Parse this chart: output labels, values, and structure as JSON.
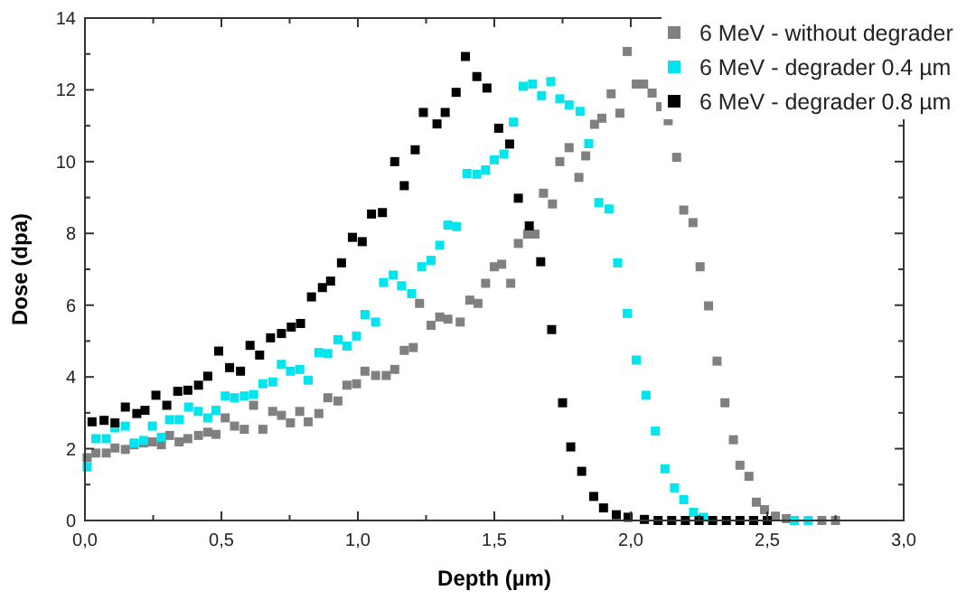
{
  "chart_data": {
    "type": "scatter",
    "xlabel": "Depth (µm)",
    "ylabel": "Dose (dpa)",
    "marker": "square",
    "legend": "top right",
    "grid": false,
    "xlim": [
      0,
      3
    ],
    "ylim": [
      0,
      14
    ],
    "xticks": [
      {
        "value": 0,
        "label": "0,0"
      },
      {
        "value": 0.25,
        "label": null
      },
      {
        "value": 0.5,
        "label": "0,5"
      },
      {
        "value": 0.75,
        "label": null
      },
      {
        "value": 1,
        "label": "1,0"
      },
      {
        "value": 1.25,
        "label": null
      },
      {
        "value": 1.5,
        "label": "1,5"
      },
      {
        "value": 1.75,
        "label": null
      },
      {
        "value": 2,
        "label": "2,0"
      },
      {
        "value": 2.25,
        "label": null
      },
      {
        "value": 2.5,
        "label": "2,5"
      },
      {
        "value": 2.75,
        "label": null
      },
      {
        "value": 3,
        "label": "3,0"
      }
    ],
    "yticks": [
      0,
      {
        "value": 1,
        "label": null
      },
      2,
      {
        "value": 3,
        "label": null
      },
      4,
      {
        "value": 5,
        "label": null
      },
      6,
      {
        "value": 7,
        "label": null
      },
      8,
      {
        "value": 9,
        "label": null
      },
      10,
      {
        "value": 11,
        "label": null
      },
      12,
      {
        "value": 13,
        "label": null
      },
      14
    ],
    "series": [
      {
        "name": "6 MeV - without degrader",
        "color": "#808080",
        "x": [
          0.008,
          0.04,
          0.078,
          0.11,
          0.148,
          0.18,
          0.215,
          0.247,
          0.28,
          0.31,
          0.345,
          0.377,
          0.416,
          0.45,
          0.48,
          0.514,
          0.548,
          0.584,
          0.618,
          0.652,
          0.688,
          0.72,
          0.753,
          0.787,
          0.818,
          0.857,
          0.89,
          0.927,
          0.96,
          0.995,
          1.026,
          1.065,
          1.104,
          1.135,
          1.17,
          1.203,
          1.226,
          1.268,
          1.3,
          1.33,
          1.375,
          1.41,
          1.44,
          1.468,
          1.5,
          1.527,
          1.56,
          1.588,
          1.622,
          1.649,
          1.68,
          1.713,
          1.74,
          1.774,
          1.81,
          1.835,
          1.867,
          1.894,
          1.928,
          1.96,
          1.987,
          2.02,
          2.047,
          2.078,
          2.109,
          2.137,
          2.168,
          2.194,
          2.228,
          2.254,
          2.285,
          2.316,
          2.345,
          2.376,
          2.4,
          2.433,
          2.46,
          2.49,
          2.53,
          2.57,
          2.7,
          2.75
        ],
        "values": [
          1.75,
          1.88,
          1.88,
          2.02,
          1.98,
          2.11,
          2.16,
          2.19,
          2.11,
          2.37,
          2.19,
          2.28,
          2.37,
          2.46,
          2.4,
          2.86,
          2.63,
          2.54,
          3.21,
          2.54,
          3.04,
          2.93,
          2.72,
          3.04,
          2.75,
          2.98,
          3.42,
          3.33,
          3.77,
          3.81,
          4.16,
          4.04,
          4.04,
          4.21,
          4.74,
          4.82,
          6.05,
          5.44,
          5.67,
          5.61,
          5.53,
          6.14,
          6.05,
          6.61,
          7.07,
          7.14,
          6.61,
          7.72,
          7.98,
          7.98,
          9.12,
          8.82,
          10,
          10.39,
          9.56,
          10.16,
          11.04,
          11.21,
          11.89,
          11.35,
          13.07,
          12.16,
          12.16,
          11.91,
          11.53,
          11.14,
          10.12,
          8.65,
          8.3,
          7.07,
          5.98,
          4.44,
          3.28,
          2.25,
          1.54,
          1.23,
          0.51,
          0.3,
          0.12,
          0.05,
          0,
          0
        ]
      },
      {
        "name": "6 MeV - degrader 0.4 µm",
        "color": "#00e5ee",
        "x": [
          0.008,
          0.04,
          0.078,
          0.11,
          0.148,
          0.18,
          0.215,
          0.247,
          0.28,
          0.31,
          0.345,
          0.38,
          0.415,
          0.45,
          0.48,
          0.514,
          0.548,
          0.584,
          0.618,
          0.652,
          0.688,
          0.72,
          0.753,
          0.787,
          0.818,
          0.857,
          0.89,
          0.927,
          0.96,
          0.995,
          1.026,
          1.065,
          1.094,
          1.13,
          1.16,
          1.197,
          1.234,
          1.268,
          1.3,
          1.33,
          1.362,
          1.4,
          1.436,
          1.468,
          1.5,
          1.535,
          1.57,
          1.606,
          1.64,
          1.673,
          1.707,
          1.74,
          1.774,
          1.814,
          1.846,
          1.883,
          1.92,
          1.952,
          1.987,
          2.02,
          2.056,
          2.09,
          2.125,
          2.16,
          2.194,
          2.23,
          2.266,
          2.6,
          2.65
        ],
        "values": [
          1.49,
          2.28,
          2.28,
          2.58,
          2.63,
          2.16,
          2.23,
          2.63,
          2.32,
          2.81,
          2.81,
          3.16,
          3.04,
          2.86,
          3.07,
          3.47,
          3.42,
          3.47,
          3.51,
          3.81,
          3.86,
          4.35,
          4.16,
          4.21,
          3.91,
          4.68,
          4.65,
          5.04,
          4.86,
          5.14,
          5.74,
          5.53,
          6.63,
          6.84,
          6.54,
          6.32,
          7.07,
          7.25,
          7.67,
          8.23,
          8.19,
          9.67,
          9.65,
          9.77,
          10.05,
          10.21,
          11.1,
          12.1,
          12.16,
          11.84,
          12.23,
          11.75,
          11.58,
          11.4,
          10.5,
          8.86,
          8.68,
          7.18,
          5.77,
          4.47,
          3.49,
          2.49,
          1.44,
          0.91,
          0.58,
          0.23,
          0.09,
          0,
          0
        ]
      },
      {
        "name": "6 MeV - degrader 0.8 µm",
        "color": "#000000",
        "x": [
          0.026,
          0.07,
          0.11,
          0.148,
          0.19,
          0.22,
          0.26,
          0.3,
          0.34,
          0.377,
          0.416,
          0.45,
          0.49,
          0.53,
          0.57,
          0.605,
          0.64,
          0.68,
          0.72,
          0.756,
          0.79,
          0.83,
          0.87,
          0.9,
          0.94,
          0.98,
          1.016,
          1.05,
          1.09,
          1.135,
          1.17,
          1.21,
          1.24,
          1.29,
          1.32,
          1.36,
          1.394,
          1.436,
          1.473,
          1.516,
          1.556,
          1.588,
          1.628,
          1.67,
          1.71,
          1.75,
          1.78,
          1.82,
          1.864,
          1.9,
          1.947,
          1.99,
          2.05,
          2.1,
          2.15,
          2.2,
          2.25,
          2.3,
          2.35,
          2.4,
          2.45,
          2.5
        ],
        "values": [
          2.75,
          2.79,
          2.72,
          3.16,
          2.98,
          3.07,
          3.49,
          3.21,
          3.6,
          3.63,
          3.77,
          4.02,
          4.72,
          4.26,
          4.16,
          4.88,
          4.61,
          5.09,
          5.21,
          5.39,
          5.49,
          6.23,
          6.49,
          6.67,
          7.18,
          7.89,
          7.77,
          8.54,
          8.58,
          10,
          9.33,
          10.33,
          11.37,
          11.05,
          11.37,
          11.93,
          12.93,
          12.37,
          12.05,
          10.93,
          10.49,
          8.98,
          8.21,
          7.21,
          5.32,
          3.28,
          2.05,
          1.37,
          0.67,
          0.35,
          0.16,
          0.09,
          0.03,
          0,
          0,
          0,
          0,
          0,
          0,
          0,
          0,
          0
        ]
      }
    ]
  }
}
